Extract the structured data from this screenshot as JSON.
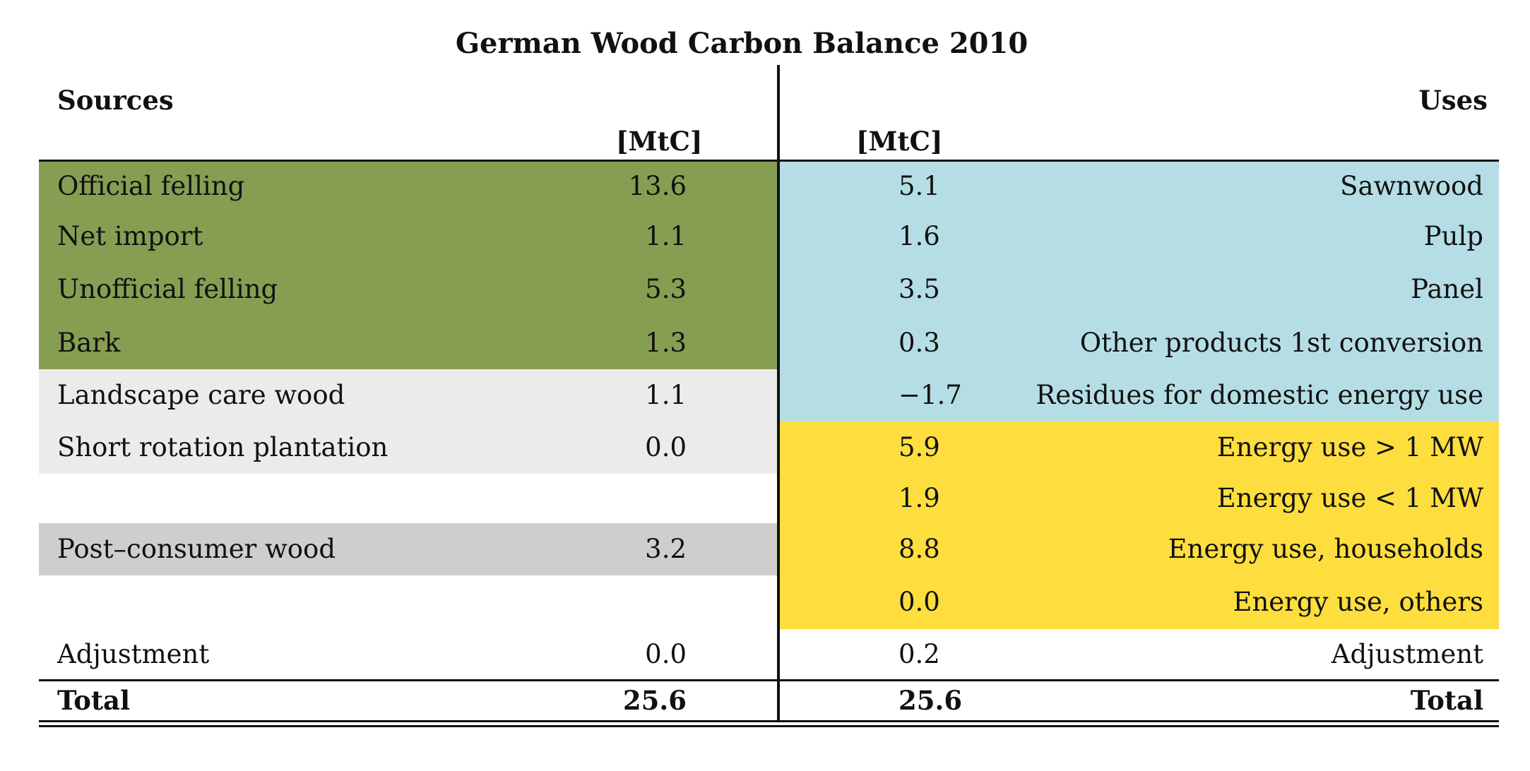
{
  "chart_data": {
    "type": "table",
    "title": "German Wood Carbon Balance 2010",
    "sources_header": "Sources",
    "uses_header": "Uses",
    "unit": "[MtC]",
    "colors": {
      "green": "#869e52",
      "light_grey": "#ebebeb",
      "grey": "#cfcdce",
      "blue": "#b5dde5",
      "yellow": "#fede3e",
      "white": "#ffffff"
    },
    "sources": [
      {
        "label": "Official felling",
        "value": "13.6",
        "color": "#869e52"
      },
      {
        "label": "Net import",
        "value": "1.1",
        "color": "#869e52"
      },
      {
        "label": "Unofficial felling",
        "value": "5.3",
        "color": "#869e52"
      },
      {
        "label": "Bark",
        "value": "1.3",
        "color": "#869e52"
      },
      {
        "label": "Landscape care wood",
        "value": "1.1",
        "color": "#ebebeb"
      },
      {
        "label": "Short rotation plantation",
        "value": "0.0",
        "color": "#ebebeb"
      },
      {
        "label": "",
        "value": "",
        "color": "#ffffff"
      },
      {
        "label": "Post–consumer wood",
        "value": "3.2",
        "color": "#cfcdce"
      },
      {
        "label": "",
        "value": "",
        "color": "#ffffff"
      },
      {
        "label": "Adjustment",
        "value": "0.0",
        "color": "#ffffff"
      }
    ],
    "uses": [
      {
        "label": "Sawnwood",
        "value": "5.1",
        "color": "#b5dde5"
      },
      {
        "label": "Pulp",
        "value": "1.6",
        "color": "#b5dde5"
      },
      {
        "label": "Panel",
        "value": "3.5",
        "color": "#b5dde5"
      },
      {
        "label": "Other products 1st conversion",
        "value": "0.3",
        "color": "#b5dde5"
      },
      {
        "label": "Residues for domestic energy use",
        "value": "−1.7",
        "color": "#b5dde5"
      },
      {
        "label": "Energy use > 1 MW",
        "value": "5.9",
        "color": "#fede3e"
      },
      {
        "label": "Energy use < 1 MW",
        "value": "1.9",
        "color": "#fede3e"
      },
      {
        "label": "Energy use, households",
        "value": "8.8",
        "color": "#fede3e"
      },
      {
        "label": "Energy use, others",
        "value": "0.0",
        "color": "#fede3e"
      },
      {
        "label": "Adjustment",
        "value": "0.2",
        "color": "#ffffff"
      }
    ],
    "total": {
      "label": "Total",
      "sources_value": "25.6",
      "uses_value": "25.6"
    }
  }
}
